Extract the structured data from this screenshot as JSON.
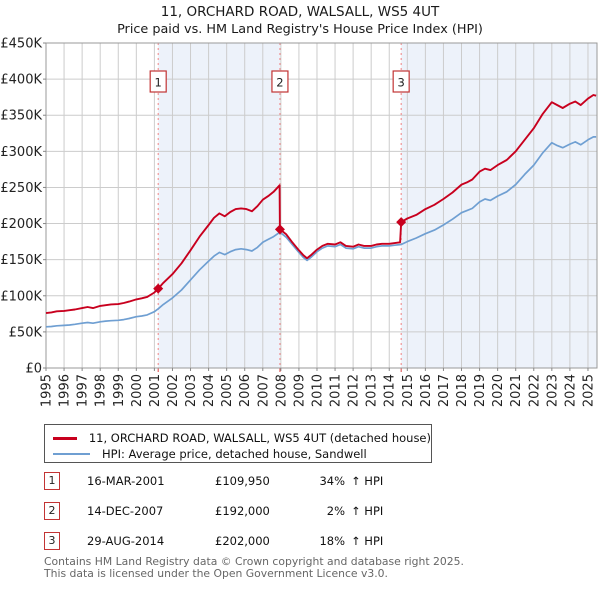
{
  "header": {
    "title": "11, ORCHARD ROAD, WALSALL, WS5 4UT",
    "subtitle": "Price paid vs. HM Land Registry's House Price Index (HPI)"
  },
  "chart_data": {
    "type": "line",
    "title": "11, ORCHARD ROAD, WALSALL, WS5 4UT — Price paid vs. HPI",
    "xlabel": "",
    "ylabel": "",
    "x_range": [
      1995,
      2025.5
    ],
    "ylim": [
      0,
      450
    ],
    "grid": true,
    "legend_position": "below",
    "yticks": [
      {
        "v": 0,
        "label": "£0"
      },
      {
        "v": 50,
        "label": "£50K"
      },
      {
        "v": 100,
        "label": "£100K"
      },
      {
        "v": 150,
        "label": "£150K"
      },
      {
        "v": 200,
        "label": "£200K"
      },
      {
        "v": 250,
        "label": "£250K"
      },
      {
        "v": 300,
        "label": "£300K"
      },
      {
        "v": 350,
        "label": "£350K"
      },
      {
        "v": 400,
        "label": "£400K"
      },
      {
        "v": 450,
        "label": "£450K"
      }
    ],
    "xticks": [
      {
        "v": 1995,
        "label": "1995"
      },
      {
        "v": 1996,
        "label": "1996"
      },
      {
        "v": 1997,
        "label": "1997"
      },
      {
        "v": 1998,
        "label": "1998"
      },
      {
        "v": 1999,
        "label": "1999"
      },
      {
        "v": 2000,
        "label": "2000"
      },
      {
        "v": 2001,
        "label": "2001"
      },
      {
        "v": 2002,
        "label": "2002"
      },
      {
        "v": 2003,
        "label": "2003"
      },
      {
        "v": 2004,
        "label": "2004"
      },
      {
        "v": 2005,
        "label": "2005"
      },
      {
        "v": 2006,
        "label": "2006"
      },
      {
        "v": 2007,
        "label": "2007"
      },
      {
        "v": 2008,
        "label": "2008"
      },
      {
        "v": 2009,
        "label": "2009"
      },
      {
        "v": 2010,
        "label": "2010"
      },
      {
        "v": 2011,
        "label": "2011"
      },
      {
        "v": 2012,
        "label": "2012"
      },
      {
        "v": 2013,
        "label": "2013"
      },
      {
        "v": 2014,
        "label": "2014"
      },
      {
        "v": 2015,
        "label": "2015"
      },
      {
        "v": 2016,
        "label": "2016"
      },
      {
        "v": 2017,
        "label": "2017"
      },
      {
        "v": 2018,
        "label": "2018"
      },
      {
        "v": 2019,
        "label": "2019"
      },
      {
        "v": 2020,
        "label": "2020"
      },
      {
        "v": 2021,
        "label": "2021"
      },
      {
        "v": 2022,
        "label": "2022"
      },
      {
        "v": 2023,
        "label": "2023"
      },
      {
        "v": 2024,
        "label": "2024"
      },
      {
        "v": 2025,
        "label": "2025"
      }
    ],
    "bands": [
      [
        2001.21,
        2007.95
      ],
      [
        2014.66,
        2025.5
      ]
    ],
    "sales": [
      {
        "n": "1",
        "x": 2001.21,
        "price_k": 109.95
      },
      {
        "n": "2",
        "x": 2007.95,
        "price_k": 192
      },
      {
        "n": "3",
        "x": 2014.66,
        "price_k": 202
      }
    ],
    "series": [
      {
        "name": "11, ORCHARD ROAD, WALSALL, WS5 4UT (detached house)",
        "color": "#c8001e",
        "width": 1.9,
        "points": [
          [
            1995.0,
            76
          ],
          [
            1995.3,
            77
          ],
          [
            1995.6,
            78.5
          ],
          [
            1996.0,
            79
          ],
          [
            1996.3,
            80
          ],
          [
            1996.6,
            81
          ],
          [
            1997.0,
            83
          ],
          [
            1997.3,
            84.5
          ],
          [
            1997.6,
            83
          ],
          [
            1998.0,
            86
          ],
          [
            1998.3,
            87
          ],
          [
            1998.6,
            88
          ],
          [
            1999.0,
            88.5
          ],
          [
            1999.3,
            90
          ],
          [
            1999.6,
            92
          ],
          [
            2000.0,
            95
          ],
          [
            2000.3,
            96.5
          ],
          [
            2000.6,
            98.5
          ],
          [
            2001.0,
            104.5
          ],
          [
            2001.21,
            110
          ],
          [
            2001.5,
            118
          ],
          [
            2002.0,
            130
          ],
          [
            2002.5,
            145
          ],
          [
            2003.0,
            163
          ],
          [
            2003.5,
            182
          ],
          [
            2004.0,
            198
          ],
          [
            2004.3,
            208
          ],
          [
            2004.6,
            214
          ],
          [
            2004.9,
            210
          ],
          [
            2005.2,
            216
          ],
          [
            2005.5,
            220
          ],
          [
            2005.8,
            221
          ],
          [
            2006.1,
            220
          ],
          [
            2006.4,
            217
          ],
          [
            2006.7,
            224
          ],
          [
            2007.0,
            233
          ],
          [
            2007.3,
            238
          ],
          [
            2007.6,
            244
          ],
          [
            2007.93,
            253
          ],
          [
            2007.95,
            192
          ],
          [
            2008.3,
            185
          ],
          [
            2008.6,
            175
          ],
          [
            2009.0,
            163
          ],
          [
            2009.25,
            156
          ],
          [
            2009.45,
            152
          ],
          [
            2009.7,
            157
          ],
          [
            2010.0,
            164
          ],
          [
            2010.3,
            169
          ],
          [
            2010.6,
            172
          ],
          [
            2011.0,
            171
          ],
          [
            2011.3,
            174
          ],
          [
            2011.6,
            169
          ],
          [
            2012.0,
            168
          ],
          [
            2012.3,
            171
          ],
          [
            2012.6,
            169
          ],
          [
            2013.0,
            169
          ],
          [
            2013.3,
            171
          ],
          [
            2013.6,
            172
          ],
          [
            2014.0,
            172
          ],
          [
            2014.3,
            173
          ],
          [
            2014.6,
            174
          ],
          [
            2014.66,
            202
          ],
          [
            2015.0,
            207
          ],
          [
            2015.5,
            212
          ],
          [
            2016.0,
            220
          ],
          [
            2016.5,
            226
          ],
          [
            2017.0,
            234
          ],
          [
            2017.5,
            243
          ],
          [
            2018.0,
            254
          ],
          [
            2018.3,
            257
          ],
          [
            2018.6,
            261
          ],
          [
            2019.0,
            272
          ],
          [
            2019.3,
            276
          ],
          [
            2019.6,
            274
          ],
          [
            2020.0,
            281
          ],
          [
            2020.5,
            288
          ],
          [
            2021.0,
            300
          ],
          [
            2021.5,
            316
          ],
          [
            2022.0,
            332
          ],
          [
            2022.5,
            352
          ],
          [
            2023.0,
            368
          ],
          [
            2023.3,
            364
          ],
          [
            2023.6,
            360
          ],
          [
            2024.0,
            366
          ],
          [
            2024.3,
            369
          ],
          [
            2024.6,
            364
          ],
          [
            2025.0,
            373
          ],
          [
            2025.3,
            378
          ],
          [
            2025.45,
            377
          ]
        ]
      },
      {
        "name": "HPI: Average price, detached house, Sandwell",
        "color": "#6f9fd2",
        "width": 1.7,
        "points": [
          [
            1995.0,
            57
          ],
          [
            1995.3,
            57.5
          ],
          [
            1995.6,
            58.5
          ],
          [
            1996.0,
            59
          ],
          [
            1996.3,
            59.5
          ],
          [
            1996.6,
            60.5
          ],
          [
            1997.0,
            62
          ],
          [
            1997.3,
            63
          ],
          [
            1997.6,
            62
          ],
          [
            1998.0,
            64
          ],
          [
            1998.3,
            65
          ],
          [
            1998.6,
            65.5
          ],
          [
            1999.0,
            66
          ],
          [
            1999.3,
            67
          ],
          [
            1999.6,
            68.5
          ],
          [
            2000.0,
            71
          ],
          [
            2000.3,
            72
          ],
          [
            2000.6,
            73.5
          ],
          [
            2001.0,
            78
          ],
          [
            2001.21,
            82
          ],
          [
            2001.5,
            88
          ],
          [
            2002.0,
            97
          ],
          [
            2002.5,
            108
          ],
          [
            2003.0,
            122
          ],
          [
            2003.5,
            136
          ],
          [
            2004.0,
            148
          ],
          [
            2004.3,
            155
          ],
          [
            2004.6,
            160
          ],
          [
            2004.9,
            157
          ],
          [
            2005.2,
            161
          ],
          [
            2005.5,
            164
          ],
          [
            2005.8,
            165
          ],
          [
            2006.1,
            164
          ],
          [
            2006.4,
            162
          ],
          [
            2006.7,
            167
          ],
          [
            2007.0,
            174
          ],
          [
            2007.3,
            178
          ],
          [
            2007.6,
            182
          ],
          [
            2007.95,
            188
          ],
          [
            2008.3,
            181
          ],
          [
            2008.6,
            172
          ],
          [
            2009.0,
            160
          ],
          [
            2009.25,
            153
          ],
          [
            2009.45,
            149
          ],
          [
            2009.7,
            154
          ],
          [
            2010.0,
            161
          ],
          [
            2010.3,
            166
          ],
          [
            2010.6,
            169
          ],
          [
            2011.0,
            168
          ],
          [
            2011.3,
            171
          ],
          [
            2011.6,
            166
          ],
          [
            2012.0,
            165
          ],
          [
            2012.3,
            168
          ],
          [
            2012.6,
            166
          ],
          [
            2013.0,
            166
          ],
          [
            2013.3,
            168
          ],
          [
            2013.6,
            169
          ],
          [
            2014.0,
            169
          ],
          [
            2014.3,
            170
          ],
          [
            2014.66,
            171
          ],
          [
            2015.0,
            175
          ],
          [
            2015.5,
            180
          ],
          [
            2016.0,
            186
          ],
          [
            2016.5,
            191
          ],
          [
            2017.0,
            198
          ],
          [
            2017.5,
            206
          ],
          [
            2018.0,
            215
          ],
          [
            2018.3,
            218
          ],
          [
            2018.6,
            221
          ],
          [
            2019.0,
            230
          ],
          [
            2019.3,
            234
          ],
          [
            2019.6,
            232
          ],
          [
            2020.0,
            238
          ],
          [
            2020.5,
            244
          ],
          [
            2021.0,
            254
          ],
          [
            2021.5,
            268
          ],
          [
            2022.0,
            281
          ],
          [
            2022.5,
            298
          ],
          [
            2023.0,
            312
          ],
          [
            2023.3,
            308
          ],
          [
            2023.6,
            305
          ],
          [
            2024.0,
            310
          ],
          [
            2024.3,
            313
          ],
          [
            2024.6,
            309
          ],
          [
            2025.0,
            316
          ],
          [
            2025.3,
            320
          ],
          [
            2025.45,
            320
          ]
        ]
      }
    ],
    "colors": {
      "band": "#edf2fa",
      "grid": "#cccccc",
      "frame": "#999999",
      "dashed": "#f08282",
      "marker_box_border": "#c23434",
      "tick_text": "#222222"
    }
  },
  "legend": {
    "items": [
      {
        "label": "11, ORCHARD ROAD, WALSALL, WS5 4UT (detached house)",
        "color": "#c8001e"
      },
      {
        "label": "HPI: Average price, detached house, Sandwell",
        "color": "#6f9fd2"
      }
    ]
  },
  "sales_table": {
    "rows": [
      {
        "num": "1",
        "date": "16-MAR-2001",
        "price": "£109,950",
        "pct": "34%",
        "vs": "↑ HPI"
      },
      {
        "num": "2",
        "date": "14-DEC-2007",
        "price": "£192,000",
        "pct": "2%",
        "vs": "↑ HPI"
      },
      {
        "num": "3",
        "date": "29-AUG-2014",
        "price": "£202,000",
        "pct": "18%",
        "vs": "↑ HPI"
      }
    ]
  },
  "footer": {
    "line1": "Contains HM Land Registry data © Crown copyright and database right 2025.",
    "line2": "This data is licensed under the Open Government Licence v3.0."
  }
}
